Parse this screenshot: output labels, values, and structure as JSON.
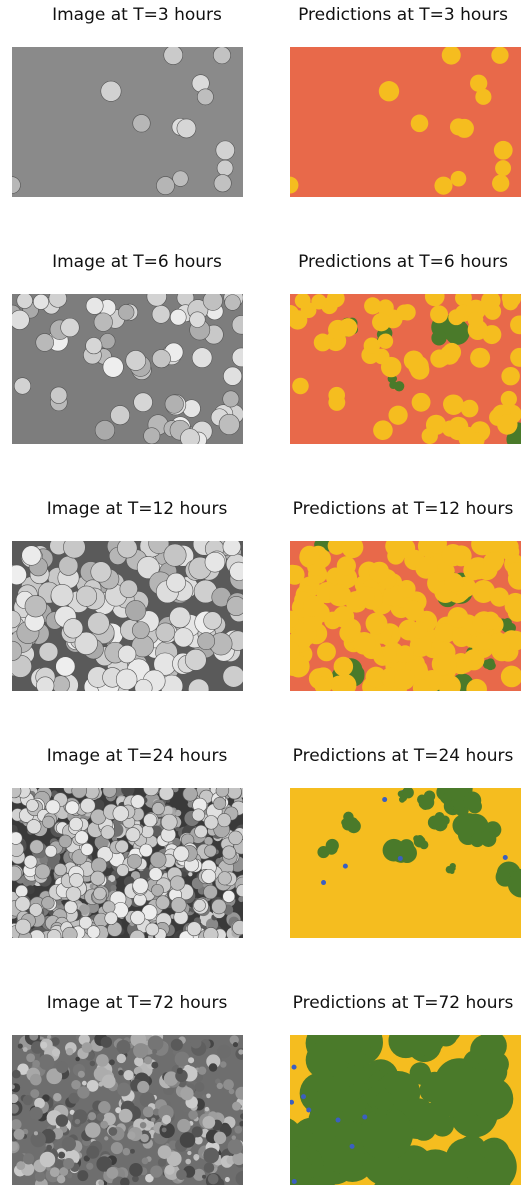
{
  "panels": [
    {
      "image_title": "Image at T=3 hours",
      "prediction_title": "Predictions at T=3 hours"
    },
    {
      "image_title": "Image at T=6 hours",
      "prediction_title": "Predictions at T=6 hours"
    },
    {
      "image_title": "Image at T=12 hours",
      "prediction_title": "Predictions at T=12 hours"
    },
    {
      "image_title": "Image at T=24 hours",
      "prediction_title": "Predictions at T=24 hours"
    },
    {
      "image_title": "Image at T=72 hours",
      "prediction_title": "Predictions at T=72 hours"
    }
  ]
}
